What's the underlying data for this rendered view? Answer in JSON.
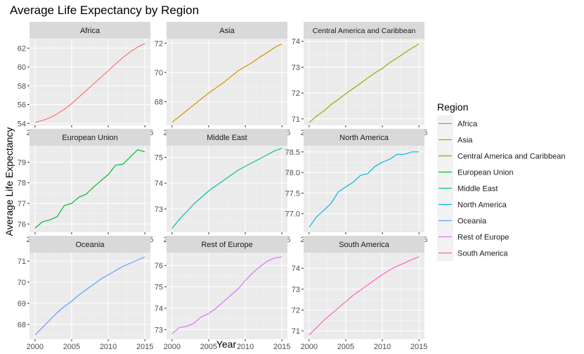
{
  "chart_data": {
    "type": "line",
    "title": "Average Life Expectancy by Region",
    "xlabel": "Year",
    "ylabel": "Average Life Expectancy",
    "legend": {
      "title": "Region",
      "placement": "right"
    },
    "grid": true,
    "x": [
      2000,
      2001,
      2002,
      2003,
      2004,
      2005,
      2006,
      2007,
      2008,
      2009,
      2010,
      2011,
      2012,
      2013,
      2014,
      2015
    ],
    "xticks": [
      2000,
      2005,
      2010,
      2015
    ],
    "series": [
      {
        "name": "Africa",
        "color": "#F8766D",
        "ylim": [
          53.8,
          63.0
        ],
        "yticks": [
          54,
          56,
          58,
          60,
          62
        ],
        "values": [
          54.1,
          54.3,
          54.6,
          55.0,
          55.5,
          56.1,
          56.8,
          57.5,
          58.2,
          58.9,
          59.6,
          60.3,
          61.0,
          61.6,
          62.1,
          62.5
        ]
      },
      {
        "name": "Asia",
        "color": "#D39200",
        "ylim": [
          66.4,
          72.3
        ],
        "yticks": [
          68,
          70,
          72
        ],
        "values": [
          66.6,
          67.0,
          67.4,
          67.8,
          68.2,
          68.6,
          68.95,
          69.3,
          69.7,
          70.1,
          70.4,
          70.7,
          71.05,
          71.35,
          71.7,
          71.95
        ]
      },
      {
        "name": "Central America and Caribbean",
        "color": "#93AA00",
        "ylim": [
          70.75,
          74.1
        ],
        "yticks": [
          71,
          72,
          73,
          74
        ],
        "values": [
          70.85,
          71.1,
          71.3,
          71.55,
          71.75,
          71.97,
          72.17,
          72.37,
          72.58,
          72.78,
          72.95,
          73.17,
          73.35,
          73.54,
          73.73,
          73.9
        ]
      },
      {
        "name": "European Union",
        "color": "#00BA38",
        "ylim": [
          75.6,
          79.8
        ],
        "yticks": [
          76,
          77,
          78,
          79
        ],
        "values": [
          75.8,
          76.1,
          76.2,
          76.35,
          76.9,
          77.0,
          77.3,
          77.45,
          77.8,
          78.1,
          78.4,
          78.85,
          78.9,
          79.25,
          79.6,
          79.5
        ]
      },
      {
        "name": "Middle East",
        "color": "#00C19F",
        "ylim": [
          72.1,
          75.45
        ],
        "yticks": [
          73,
          74,
          75
        ],
        "values": [
          72.25,
          72.6,
          72.9,
          73.2,
          73.45,
          73.7,
          73.9,
          74.1,
          74.3,
          74.5,
          74.65,
          74.8,
          74.95,
          75.1,
          75.25,
          75.35
        ]
      },
      {
        "name": "North America",
        "color": "#00B9E3",
        "ylim": [
          76.55,
          78.65
        ],
        "yticks": [
          77.0,
          77.5,
          78.0,
          78.5
        ],
        "values": [
          76.67,
          76.92,
          77.08,
          77.25,
          77.53,
          77.65,
          77.76,
          77.93,
          77.97,
          78.15,
          78.25,
          78.32,
          78.44,
          78.44,
          78.5,
          78.5
        ]
      },
      {
        "name": "Oceania",
        "color": "#619CFF",
        "ylim": [
          67.3,
          71.4
        ],
        "yticks": [
          68,
          69,
          70,
          71
        ],
        "values": [
          67.5,
          67.85,
          68.2,
          68.55,
          68.85,
          69.1,
          69.4,
          69.65,
          69.9,
          70.15,
          70.35,
          70.55,
          70.75,
          70.9,
          71.05,
          71.2
        ]
      },
      {
        "name": "Rest of Europe",
        "color": "#DB72FB",
        "ylim": [
          72.55,
          76.6
        ],
        "yticks": [
          73,
          74,
          75,
          76
        ],
        "values": [
          72.8,
          73.1,
          73.15,
          73.3,
          73.6,
          73.75,
          74.0,
          74.3,
          74.6,
          74.9,
          75.3,
          75.65,
          75.95,
          76.2,
          76.35,
          76.4
        ]
      },
      {
        "name": "South America",
        "color": "#FF61C3",
        "ylim": [
          70.6,
          74.75
        ],
        "yticks": [
          71,
          72,
          73,
          74
        ],
        "values": [
          70.8,
          71.15,
          71.5,
          71.8,
          72.1,
          72.4,
          72.7,
          72.95,
          73.2,
          73.45,
          73.7,
          73.92,
          74.1,
          74.25,
          74.42,
          74.55
        ]
      }
    ]
  }
}
